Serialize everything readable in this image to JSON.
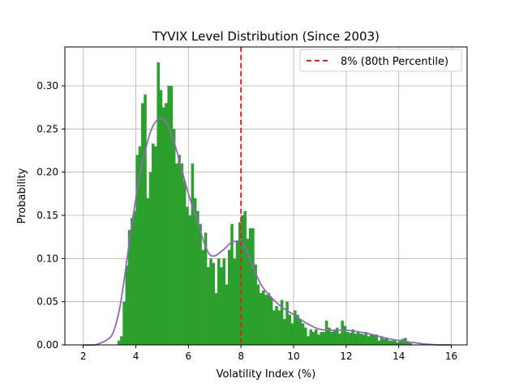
{
  "chart_data": {
    "type": "histogram",
    "title": "TYVIX Level Distribution (Since 2003)",
    "xlabel": "Volatility Index (%)",
    "ylabel": "Probability",
    "xlim": [
      1.3,
      16.6
    ],
    "ylim": [
      0,
      0.345
    ],
    "xticks": [
      2,
      4,
      6,
      8,
      10,
      12,
      14,
      16
    ],
    "yticks": [
      0.0,
      0.05,
      0.1,
      0.15,
      0.2,
      0.25,
      0.3
    ],
    "xtick_labels": [
      "2",
      "4",
      "6",
      "8",
      "10",
      "12",
      "14",
      "16"
    ],
    "ytick_labels": [
      "0.00",
      "0.05",
      "0.10",
      "0.15",
      "0.20",
      "0.25",
      "0.30"
    ],
    "grid": true,
    "legend_position": "top-right",
    "histogram": {
      "color": "#2ca02c",
      "bin_width": 0.1,
      "bins": [
        {
          "x": 3.3,
          "y": 0.005
        },
        {
          "x": 3.4,
          "y": 0.01
        },
        {
          "x": 3.5,
          "y": 0.05
        },
        {
          "x": 3.6,
          "y": 0.092
        },
        {
          "x": 3.7,
          "y": 0.133
        },
        {
          "x": 3.8,
          "y": 0.147
        },
        {
          "x": 3.9,
          "y": 0.155
        },
        {
          "x": 4.0,
          "y": 0.22
        },
        {
          "x": 4.1,
          "y": 0.23
        },
        {
          "x": 4.2,
          "y": 0.28
        },
        {
          "x": 4.3,
          "y": 0.29
        },
        {
          "x": 4.4,
          "y": 0.17
        },
        {
          "x": 4.5,
          "y": 0.2
        },
        {
          "x": 4.6,
          "y": 0.233
        },
        {
          "x": 4.7,
          "y": 0.23
        },
        {
          "x": 4.8,
          "y": 0.327
        },
        {
          "x": 4.9,
          "y": 0.295
        },
        {
          "x": 5.0,
          "y": 0.275
        },
        {
          "x": 5.1,
          "y": 0.28
        },
        {
          "x": 5.2,
          "y": 0.3
        },
        {
          "x": 5.3,
          "y": 0.3
        },
        {
          "x": 5.4,
          "y": 0.25
        },
        {
          "x": 5.5,
          "y": 0.21
        },
        {
          "x": 5.6,
          "y": 0.22
        },
        {
          "x": 5.7,
          "y": 0.21
        },
        {
          "x": 5.8,
          "y": 0.19
        },
        {
          "x": 5.9,
          "y": 0.16
        },
        {
          "x": 6.0,
          "y": 0.15
        },
        {
          "x": 6.1,
          "y": 0.21
        },
        {
          "x": 6.2,
          "y": 0.17
        },
        {
          "x": 6.3,
          "y": 0.155
        },
        {
          "x": 6.4,
          "y": 0.14
        },
        {
          "x": 6.5,
          "y": 0.11
        },
        {
          "x": 6.6,
          "y": 0.13
        },
        {
          "x": 6.7,
          "y": 0.09
        },
        {
          "x": 6.8,
          "y": 0.1
        },
        {
          "x": 6.9,
          "y": 0.095
        },
        {
          "x": 7.0,
          "y": 0.06
        },
        {
          "x": 7.1,
          "y": 0.1
        },
        {
          "x": 7.2,
          "y": 0.09
        },
        {
          "x": 7.3,
          "y": 0.1
        },
        {
          "x": 7.4,
          "y": 0.07
        },
        {
          "x": 7.5,
          "y": 0.11
        },
        {
          "x": 7.6,
          "y": 0.14
        },
        {
          "x": 7.7,
          "y": 0.1
        },
        {
          "x": 7.8,
          "y": 0.12
        },
        {
          "x": 7.9,
          "y": 0.142
        },
        {
          "x": 8.0,
          "y": 0.15
        },
        {
          "x": 8.1,
          "y": 0.155
        },
        {
          "x": 8.2,
          "y": 0.123
        },
        {
          "x": 8.3,
          "y": 0.135
        },
        {
          "x": 8.4,
          "y": 0.135
        },
        {
          "x": 8.5,
          "y": 0.093
        },
        {
          "x": 8.6,
          "y": 0.07
        },
        {
          "x": 8.7,
          "y": 0.06
        },
        {
          "x": 8.8,
          "y": 0.063
        },
        {
          "x": 8.9,
          "y": 0.058
        },
        {
          "x": 9.0,
          "y": 0.06
        },
        {
          "x": 9.1,
          "y": 0.055
        },
        {
          "x": 9.2,
          "y": 0.04
        },
        {
          "x": 9.3,
          "y": 0.045
        },
        {
          "x": 9.4,
          "y": 0.04
        },
        {
          "x": 9.5,
          "y": 0.052
        },
        {
          "x": 9.6,
          "y": 0.03
        },
        {
          "x": 9.7,
          "y": 0.05
        },
        {
          "x": 9.8,
          "y": 0.035
        },
        {
          "x": 9.9,
          "y": 0.025
        },
        {
          "x": 10.0,
          "y": 0.04
        },
        {
          "x": 10.1,
          "y": 0.035
        },
        {
          "x": 10.2,
          "y": 0.03
        },
        {
          "x": 10.3,
          "y": 0.025
        },
        {
          "x": 10.4,
          "y": 0.02
        },
        {
          "x": 10.5,
          "y": 0.01
        },
        {
          "x": 10.6,
          "y": 0.018
        },
        {
          "x": 10.7,
          "y": 0.015
        },
        {
          "x": 10.8,
          "y": 0.018
        },
        {
          "x": 10.9,
          "y": 0.012
        },
        {
          "x": 11.0,
          "y": 0.015
        },
        {
          "x": 11.1,
          "y": 0.015
        },
        {
          "x": 11.2,
          "y": 0.028
        },
        {
          "x": 11.3,
          "y": 0.02
        },
        {
          "x": 11.4,
          "y": 0.015
        },
        {
          "x": 11.5,
          "y": 0.017
        },
        {
          "x": 11.6,
          "y": 0.02
        },
        {
          "x": 11.7,
          "y": 0.013
        },
        {
          "x": 11.8,
          "y": 0.028
        },
        {
          "x": 11.9,
          "y": 0.022
        },
        {
          "x": 12.0,
          "y": 0.015
        },
        {
          "x": 12.1,
          "y": 0.014
        },
        {
          "x": 12.2,
          "y": 0.018
        },
        {
          "x": 12.3,
          "y": 0.013
        },
        {
          "x": 12.4,
          "y": 0.015
        },
        {
          "x": 12.5,
          "y": 0.013
        },
        {
          "x": 12.6,
          "y": 0.012
        },
        {
          "x": 12.7,
          "y": 0.015
        },
        {
          "x": 12.8,
          "y": 0.01
        },
        {
          "x": 12.9,
          "y": 0.012
        },
        {
          "x": 13.0,
          "y": 0.012
        },
        {
          "x": 13.1,
          "y": 0.012
        },
        {
          "x": 13.2,
          "y": 0.005
        },
        {
          "x": 13.3,
          "y": 0.01
        },
        {
          "x": 13.4,
          "y": 0.007
        },
        {
          "x": 13.5,
          "y": 0.007
        },
        {
          "x": 13.6,
          "y": 0.005
        },
        {
          "x": 13.7,
          "y": 0.005
        },
        {
          "x": 13.8,
          "y": 0.005
        },
        {
          "x": 13.9,
          "y": 0.003
        },
        {
          "x": 14.0,
          "y": 0.006
        },
        {
          "x": 14.1,
          "y": 0.007
        },
        {
          "x": 14.2,
          "y": 0.008
        },
        {
          "x": 14.3,
          "y": 0.003
        },
        {
          "x": 14.4,
          "y": 0.002
        }
      ]
    },
    "kde": {
      "color": "#9467bd",
      "x": [
        2.0,
        2.5,
        3.0,
        3.2,
        3.4,
        3.6,
        3.8,
        4.0,
        4.2,
        4.4,
        4.6,
        4.8,
        5.0,
        5.2,
        5.4,
        5.6,
        5.8,
        6.0,
        6.2,
        6.4,
        6.6,
        6.8,
        7.0,
        7.2,
        7.4,
        7.6,
        7.8,
        8.0,
        8.2,
        8.4,
        8.6,
        8.8,
        9.0,
        9.5,
        10.0,
        10.5,
        11.0,
        11.5,
        12.0,
        12.5,
        13.0,
        13.5,
        14.0,
        14.5,
        15.0,
        15.5,
        16.0
      ],
      "y": [
        0.0,
        0.0005,
        0.008,
        0.02,
        0.045,
        0.085,
        0.13,
        0.17,
        0.205,
        0.23,
        0.25,
        0.26,
        0.262,
        0.255,
        0.24,
        0.22,
        0.197,
        0.175,
        0.156,
        0.138,
        0.118,
        0.105,
        0.103,
        0.107,
        0.112,
        0.118,
        0.12,
        0.12,
        0.11,
        0.095,
        0.08,
        0.068,
        0.06,
        0.045,
        0.035,
        0.025,
        0.018,
        0.017,
        0.017,
        0.015,
        0.012,
        0.008,
        0.005,
        0.003,
        0.001,
        0.0,
        0.0
      ]
    },
    "reference_line": {
      "x": 8.0,
      "color": "#d62728",
      "style": "dashed",
      "label": "8% (80th Percentile)"
    }
  }
}
